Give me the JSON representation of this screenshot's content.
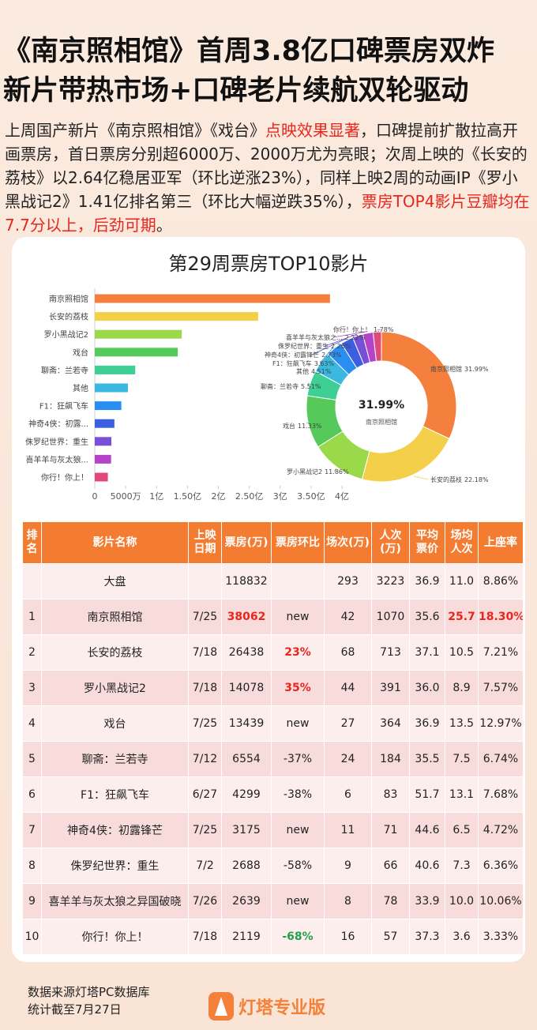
{
  "header": {
    "title_lines": [
      "《南京照相馆》首周3.8亿口碑票房双炸",
      "新片带热市场+口碑老片续航双轮驱动"
    ]
  },
  "intro": [
    {
      "text": "上周国产新片《南京照相馆》《戏台》",
      "highlight": false
    },
    {
      "text": "点映效果显著",
      "highlight": true
    },
    {
      "text": "，口碑提前扩散拉高开画票房，首日票房分别超6000万、2000万尤为亮眼；次周上映的《长安的荔枝》以2.64亿稳居亚军（环比逆涨23%），同样上映2周的动画IP《罗小黑战记2》1.41亿排名第三（环比大幅逆跌35%），",
      "highlight": false
    },
    {
      "text": "票房TOP4影片豆瓣均在7.7分以上，后劲可期",
      "highlight": true
    },
    {
      "text": "。",
      "highlight": false
    }
  ],
  "chart_data": [
    {
      "type": "bar",
      "title": "第29周票房TOP10影片",
      "orientation": "horizontal",
      "categories": [
        "南京照相馆",
        "长安的荔枝",
        "罗小黑战记2",
        "戏台",
        "聊斋：兰若寺",
        "其他",
        "F1：狂飙飞车",
        "神奇4侠：初露...",
        "侏罗纪世界：重生",
        "喜羊羊与灰太狼...",
        "你行！你上！"
      ],
      "values": [
        38062,
        26438,
        14078,
        13439,
        6554,
        5359,
        4299,
        3175,
        2688,
        2639,
        2119
      ],
      "colors": [
        "#f5803e",
        "#f4d04a",
        "#9ad94a",
        "#55c95a",
        "#3ecf94",
        "#3bb8e0",
        "#2a8ef0",
        "#3b5fe0",
        "#7a4fd8",
        "#b543c8",
        "#e04a7a"
      ],
      "xlim": [
        0,
        40000
      ],
      "xticks": [
        0,
        {
          "value": 5000,
          "label": "5000万"
        },
        {
          "value": 10000,
          "label": "1亿"
        },
        {
          "value": 15000,
          "label": "1.50亿"
        },
        {
          "value": 20000,
          "label": "2亿"
        },
        {
          "value": 25000,
          "label": "2.50亿"
        },
        {
          "value": 30000,
          "label": "3亿"
        },
        {
          "value": 35000,
          "label": "3.50亿"
        },
        {
          "value": 40000,
          "label": "4亿"
        }
      ]
    },
    {
      "type": "donut",
      "categories": [
        "南京照相馆",
        "长安的荔枝",
        "罗小黑战记2",
        "戏台",
        "聊斋：兰若寺",
        "其他",
        "F1：狂飙飞车",
        "神奇4侠：初露锋芒",
        "侏罗纪世界：重生",
        "喜羊羊与灰太狼之...",
        "你行！你上！"
      ],
      "values": [
        31.99,
        22.18,
        11.86,
        11.33,
        5.51,
        4.51,
        3.63,
        2.73,
        2.26,
        2.22,
        1.78
      ],
      "value_labels": [
        "31.99%",
        "22.18%",
        "11.86%",
        "11.33%",
        "5.51%",
        "4.51%",
        "3.63%",
        "2.73%",
        "2.26%",
        "2.22%",
        "1.78%"
      ],
      "colors": [
        "#f5803e",
        "#f4d04a",
        "#9ad94a",
        "#55c95a",
        "#3ecf94",
        "#3bb8e0",
        "#2a8ef0",
        "#3b5fe0",
        "#7a4fd8",
        "#b543c8",
        "#e04a7a"
      ],
      "center_label": "南京照相馆"
    }
  ],
  "table": {
    "header": [
      "排名",
      "影片名称",
      "上映日期",
      "票房(万)",
      "票房环比",
      "场次(万)",
      "人次(万)",
      "平均票价",
      "场均人次",
      "上座率"
    ],
    "rows": [
      [
        null,
        "大盘",
        null,
        "118832",
        null,
        "293",
        "3223",
        "36.9",
        "11.0",
        "8.86%"
      ],
      [
        "1",
        "南京照相馆",
        "7/25",
        "38062",
        "new",
        "42",
        "1070",
        "35.6",
        "25.7",
        "18.30%"
      ],
      [
        "2",
        "长安的荔枝",
        "7/18",
        "26438",
        "23%",
        "68",
        "713",
        "37.1",
        "10.5",
        "7.21%"
      ],
      [
        "3",
        "罗小黑战记2",
        "7/18",
        "14078",
        "35%",
        "44",
        "391",
        "36.0",
        "8.9",
        "7.57%"
      ],
      [
        "4",
        "戏台",
        "7/25",
        "13439",
        "new",
        "27",
        "364",
        "36.9",
        "13.5",
        "12.97%"
      ],
      [
        "5",
        "聊斋：兰若寺",
        "7/12",
        "6554",
        "-37%",
        "24",
        "184",
        "35.5",
        "7.5",
        "6.74%"
      ],
      [
        "6",
        "F1：狂飙飞车",
        "6/27",
        "4299",
        "-38%",
        "6",
        "83",
        "51.7",
        "13.1",
        "7.68%"
      ],
      [
        "7",
        "神奇4侠：初露锋芒",
        "7/25",
        "3175",
        "new",
        "11",
        "71",
        "44.6",
        "6.5",
        "4.72%"
      ],
      [
        "8",
        "侏罗纪世界：重生",
        "7/2",
        "2688",
        "-58%",
        "9",
        "66",
        "40.6",
        "7.3",
        "6.36%"
      ],
      [
        "9",
        "喜羊羊与灰太狼之异国破晓",
        "7/26",
        "2639",
        "new",
        "8",
        "78",
        "33.9",
        "10.0",
        "10.06%"
      ],
      [
        "10",
        "你行！你上！",
        "7/18",
        "2119",
        "-68%",
        "16",
        "57",
        "37.3",
        "3.6",
        "3.33%"
      ]
    ],
    "highlights": [
      {
        "row": 1,
        "col": 3,
        "color": "#e8261c"
      },
      {
        "row": 1,
        "col": 8,
        "color": "#e8261c"
      },
      {
        "row": 1,
        "col": 9,
        "color": "#e8261c"
      },
      {
        "row": 2,
        "col": 4,
        "color": "#e8261c"
      },
      {
        "row": 3,
        "col": 4,
        "color": "#e8261c"
      },
      {
        "row": 10,
        "col": 4,
        "color": "#22a04a"
      }
    ]
  },
  "footer": {
    "notes": [
      "数据来源灯塔PC数据库",
      "统计截至7月27日"
    ],
    "brand": "灯塔专业版"
  }
}
